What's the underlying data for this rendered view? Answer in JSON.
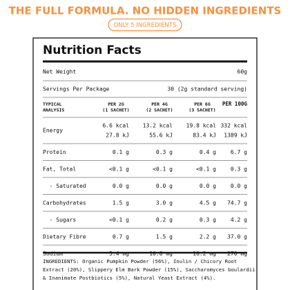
{
  "header": {
    "title": "THE FULL FORMULA. NO HIDDEN INGREDIENTS",
    "badge": "ONLY 5 INGREDIENTS"
  },
  "panel": {
    "title": "Nutrition Facts",
    "net_weight": {
      "label": "Net Weight",
      "value": "60g"
    },
    "servings": {
      "label": "Servings Per Package",
      "value": "30 (2g standard serving)"
    },
    "table": {
      "columns": [
        [
          "TYPICAL",
          "ANALYSIS"
        ],
        [
          "PER 2G",
          "(1 SACHET)"
        ],
        [
          "PER 4G",
          "(2 SACHET)"
        ],
        [
          "PER 6G",
          "(3 SACHET)"
        ],
        [
          "PER 100G"
        ]
      ],
      "rows": [
        [
          "Energy",
          [
            "6.6 kcal",
            "27.8 kJ"
          ],
          [
            "13.2 kcal",
            "55.6 kJ"
          ],
          [
            "19.8 kcal",
            "83.4 kJ"
          ],
          [
            "332 kcal",
            "1389 kJ"
          ]
        ],
        [
          "Protein",
          "0.1 g",
          "0.3 g",
          "0.4 g",
          "6.7 g"
        ],
        [
          "Fat, Total",
          "<0.1 g",
          "<0.1 g",
          "<0.1 g",
          "0.3 g"
        ],
        [
          "  - Saturated",
          "0.0 g",
          "0.0 g",
          "0.0 g",
          "0.0 g"
        ],
        [
          "Carbohydrates",
          "1.5 g",
          "3.0 g",
          "4.5 g",
          "74.7 g"
        ],
        [
          "  - Sugars",
          "<0.1 g",
          "0.2 g",
          "0.3 g",
          "4.2 g"
        ],
        [
          "Dietary Fibre",
          "0.7 g",
          "1.5 g",
          "2.2 g",
          "37.0 g"
        ],
        [
          "Sodium",
          "5.4 mg",
          "10.8 mg",
          "16.2 mg",
          "270 mg"
        ]
      ]
    },
    "ingredients": [
      "INGREDIENTS: Organic Pumpkin Powder (56%), Inulin / Chicory Root",
      "Extract (20%), Slippery Elm Bark Powder (15%), Saccharomyces boulardii",
      "& Inanimate Postbiotics (5%), Natural Yeast Extract (4%)."
    ]
  }
}
